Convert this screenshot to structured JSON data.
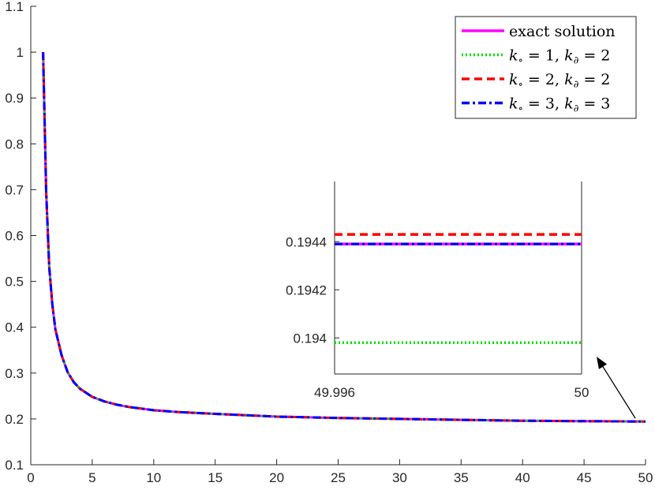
{
  "chart_data": [
    {
      "type": "line",
      "title": "",
      "xlabel": "",
      "ylabel": "",
      "xlim": [
        0,
        50
      ],
      "ylim": [
        0.1,
        1.1
      ],
      "xticks": [
        0,
        5,
        10,
        15,
        20,
        25,
        30,
        35,
        40,
        45,
        50
      ],
      "yticks": [
        0.1,
        0.2,
        0.3,
        0.4,
        0.5,
        0.6,
        0.7,
        0.8,
        0.9,
        1,
        1.1
      ],
      "xtick_labels": [
        "0",
        "5",
        "10",
        "15",
        "20",
        "25",
        "30",
        "35",
        "40",
        "45",
        "50"
      ],
      "ytick_labels": [
        "0.1",
        "0.2",
        "0.3",
        "0.4",
        "0.5",
        "0.6",
        "0.7",
        "0.8",
        "0.9",
        "1",
        "1.1"
      ],
      "grid": false,
      "legend_position": "top-right",
      "x": [
        1,
        1.25,
        1.5,
        1.75,
        2,
        2.5,
        3,
        3.5,
        4,
        5,
        6,
        7,
        8,
        10,
        12,
        15,
        20,
        25,
        30,
        35,
        40,
        45,
        50
      ],
      "series": [
        {
          "name": "exact solution",
          "color": "#ff00ff",
          "style": "solid",
          "values": [
            1.0,
            0.696,
            0.531,
            0.45,
            0.395,
            0.339,
            0.302,
            0.28,
            0.266,
            0.248,
            0.238,
            0.231,
            0.226,
            0.219,
            0.215,
            0.211,
            0.205,
            0.202,
            0.2,
            0.198,
            0.196,
            0.195,
            0.1944
          ]
        },
        {
          "name": "k∘ = 1, k∂ = 2",
          "color": "#00e000",
          "style": "dotted",
          "values": [
            1.0,
            0.696,
            0.531,
            0.45,
            0.395,
            0.339,
            0.302,
            0.28,
            0.266,
            0.248,
            0.238,
            0.231,
            0.226,
            0.219,
            0.215,
            0.211,
            0.205,
            0.202,
            0.2,
            0.198,
            0.196,
            0.195,
            0.1944
          ]
        },
        {
          "name": "k∘ = 2, k∂ = 2",
          "color": "#ff0000",
          "style": "dashed",
          "values": [
            1.0,
            0.696,
            0.531,
            0.45,
            0.395,
            0.339,
            0.302,
            0.28,
            0.266,
            0.248,
            0.238,
            0.231,
            0.226,
            0.219,
            0.215,
            0.211,
            0.205,
            0.202,
            0.2,
            0.198,
            0.196,
            0.195,
            0.1944
          ]
        },
        {
          "name": "k∘ = 3, k∂ = 3",
          "color": "#0000ff",
          "style": "dashdot",
          "values": [
            1.0,
            0.696,
            0.531,
            0.45,
            0.395,
            0.339,
            0.302,
            0.28,
            0.266,
            0.248,
            0.238,
            0.231,
            0.226,
            0.219,
            0.215,
            0.211,
            0.205,
            0.202,
            0.2,
            0.198,
            0.196,
            0.195,
            0.1944
          ]
        }
      ],
      "legend": [
        {
          "pre": "exact solution",
          "color": "#ff00ff",
          "style": "solid"
        },
        {
          "k1": "1",
          "k2": "2",
          "color": "#00e000",
          "style": "dotted"
        },
        {
          "k1": "2",
          "k2": "2",
          "color": "#ff0000",
          "style": "dashed"
        },
        {
          "k1": "3",
          "k2": "3",
          "color": "#0000ff",
          "style": "dashdot"
        }
      ],
      "legend_symbols": {
        "k": "k",
        "sub_interior": "∘",
        "sub_boundary": "∂",
        "eq": " = ",
        "sep": ", "
      }
    },
    {
      "type": "line",
      "title": "",
      "inset": true,
      "xlim": [
        49.996,
        50
      ],
      "ylim": [
        0.19385,
        0.19465
      ],
      "xticks": [
        49.996,
        50
      ],
      "xtick_labels": [
        "49.996",
        "50"
      ],
      "yticks": [
        0.194,
        0.1942,
        0.1944
      ],
      "ytick_labels": [
        "0.194",
        "0.1942",
        "0.1944"
      ],
      "series": [
        {
          "name": "exact solution",
          "color": "#ff00ff",
          "style": "solid",
          "values": [
            0.19439,
            0.19439
          ]
        },
        {
          "name": "k∘ = 1, k∂ = 2",
          "color": "#00e000",
          "style": "dotted",
          "values": [
            0.19398,
            0.19398
          ]
        },
        {
          "name": "k∘ = 2, k∂ = 2",
          "color": "#ff0000",
          "style": "dashed",
          "values": [
            0.19443,
            0.19443
          ]
        },
        {
          "name": "k∘ = 3, k∂ = 3",
          "color": "#0000ff",
          "style": "dashdot",
          "values": [
            0.19439,
            0.19439
          ]
        }
      ],
      "x": [
        49.996,
        50
      ]
    }
  ]
}
